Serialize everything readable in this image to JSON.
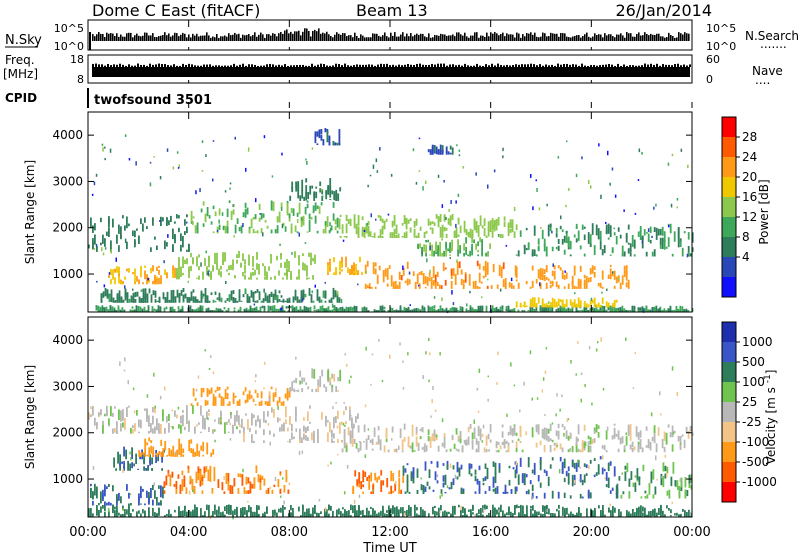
{
  "header": {
    "station": "Dome C East (fitACF)",
    "beam": "Beam 13",
    "date": "26/Jan/2014"
  },
  "top_panels": {
    "nsky": {
      "label": "N.Sky",
      "left_ticks": [
        "10^5",
        "10^0"
      ],
      "right_label": "N.Search",
      "right_ticks": [
        "10^5",
        "10^0"
      ],
      "right_marker": "......."
    },
    "freq": {
      "label_line1": "Freq.",
      "label_line2": "[MHz]",
      "left_ticks": [
        "18",
        "8"
      ],
      "right_label": "Nave",
      "right_ticks": [
        "60",
        "0"
      ],
      "right_marker": "...."
    },
    "cpid": {
      "label": "CPID",
      "program": "twofsound 3501"
    }
  },
  "chart_data": [
    {
      "type": "heatmap",
      "name": "power",
      "ylabel": "Slant Range [km]",
      "ylim": [
        180,
        4500
      ],
      "yticks": [
        "4000",
        "3000",
        "2000",
        "1000"
      ],
      "colorbar": {
        "label": "Power [dB]",
        "ticks": [
          "28",
          "24",
          "20",
          "16",
          "12",
          "8",
          "4"
        ],
        "colors": [
          "#ff0000",
          "#ff5a00",
          "#ff9a18",
          "#f0c800",
          "#8cc84b",
          "#3ea85a",
          "#2e7d5a",
          "#2a47b8",
          "#1010ff"
        ]
      },
      "bands": [
        {
          "t": [
            0.3,
            24
          ],
          "r": [
            200,
            330
          ],
          "v": 10
        },
        {
          "t": [
            0.5,
            10
          ],
          "r": [
            400,
            700
          ],
          "v": 9
        },
        {
          "t": [
            0.8,
            3.5
          ],
          "r": [
            800,
            1200
          ],
          "v": 22
        },
        {
          "t": [
            3.5,
            9
          ],
          "r": [
            900,
            1500
          ],
          "v": 16
        },
        {
          "t": [
            9.5,
            11
          ],
          "r": [
            1000,
            1400
          ],
          "v": 22
        },
        {
          "t": [
            11,
            17
          ],
          "r": [
            700,
            1300
          ],
          "v": 25
        },
        {
          "t": [
            13,
            16
          ],
          "r": [
            1400,
            1800
          ],
          "v": 14
        },
        {
          "t": [
            17,
            21
          ],
          "r": [
            300,
            500
          ],
          "v": 20
        },
        {
          "t": [
            17,
            21.5
          ],
          "r": [
            700,
            1200
          ],
          "v": 24
        },
        {
          "t": [
            0,
            4
          ],
          "r": [
            1500,
            2300
          ],
          "v": 8
        },
        {
          "t": [
            4,
            10
          ],
          "r": [
            1900,
            2600
          ],
          "v": 14
        },
        {
          "t": [
            8,
            10
          ],
          "r": [
            2600,
            3100
          ],
          "v": 8
        },
        {
          "t": [
            10,
            17
          ],
          "r": [
            1800,
            2300
          ],
          "v": 16
        },
        {
          "t": [
            17,
            24
          ],
          "r": [
            1400,
            2100
          ],
          "v": 10
        },
        {
          "t": [
            9,
            10
          ],
          "r": [
            3800,
            4200
          ],
          "v": 5
        },
        {
          "t": [
            13.5,
            14.5
          ],
          "r": [
            3600,
            3800
          ],
          "v": 5
        }
      ]
    },
    {
      "type": "heatmap",
      "name": "velocity",
      "ylabel": "Slant Range [km]",
      "ylim": [
        180,
        4500
      ],
      "yticks": [
        "4000",
        "3000",
        "2000",
        "1000"
      ],
      "colorbar": {
        "label": "Velocity [m s^-1]",
        "ticks": [
          "1000",
          "500",
          "100",
          "25",
          "-25",
          "-100",
          "-500",
          "-1000"
        ],
        "colors": [
          "#1e2fae",
          "#3a55c6",
          "#2e7d5a",
          "#6fc44f",
          "#b8b8b8",
          "#f2c488",
          "#ff9a18",
          "#ff5a00",
          "#ff0000"
        ]
      },
      "bands": [
        {
          "t": [
            0,
            24
          ],
          "r": [
            200,
            450
          ],
          "v": 120
        },
        {
          "t": [
            0,
            3
          ],
          "r": [
            450,
            900
          ],
          "v": 300
        },
        {
          "t": [
            3,
            8
          ],
          "r": [
            700,
            1300
          ],
          "v": -300
        },
        {
          "t": [
            1,
            3
          ],
          "r": [
            1200,
            1700
          ],
          "v": 300
        },
        {
          "t": [
            2,
            5
          ],
          "r": [
            1500,
            1900
          ],
          "v": -200
        },
        {
          "t": [
            10.5,
            12.5
          ],
          "r": [
            700,
            1200
          ],
          "v": -300
        },
        {
          "t": [
            12.5,
            17
          ],
          "r": [
            700,
            1400
          ],
          "v": 300
        },
        {
          "t": [
            17,
            21
          ],
          "r": [
            600,
            1500
          ],
          "v": 300
        },
        {
          "t": [
            21,
            24
          ],
          "r": [
            600,
            1400
          ],
          "v": 60
        },
        {
          "t": [
            0,
            6
          ],
          "r": [
            2000,
            2600
          ],
          "v": 0
        },
        {
          "t": [
            6,
            11
          ],
          "r": [
            1800,
            2600
          ],
          "v": -10
        },
        {
          "t": [
            10,
            24
          ],
          "r": [
            1600,
            2200
          ],
          "v": 0
        },
        {
          "t": [
            4,
            8
          ],
          "r": [
            2600,
            3000
          ],
          "v": -200
        },
        {
          "t": [
            8,
            10
          ],
          "r": [
            2900,
            3400
          ],
          "v": 0
        }
      ]
    }
  ],
  "x_axis": {
    "label": "Time UT",
    "ticks": [
      "00:00",
      "04:00",
      "08:00",
      "12:00",
      "16:00",
      "20:00",
      "00:00"
    ]
  }
}
